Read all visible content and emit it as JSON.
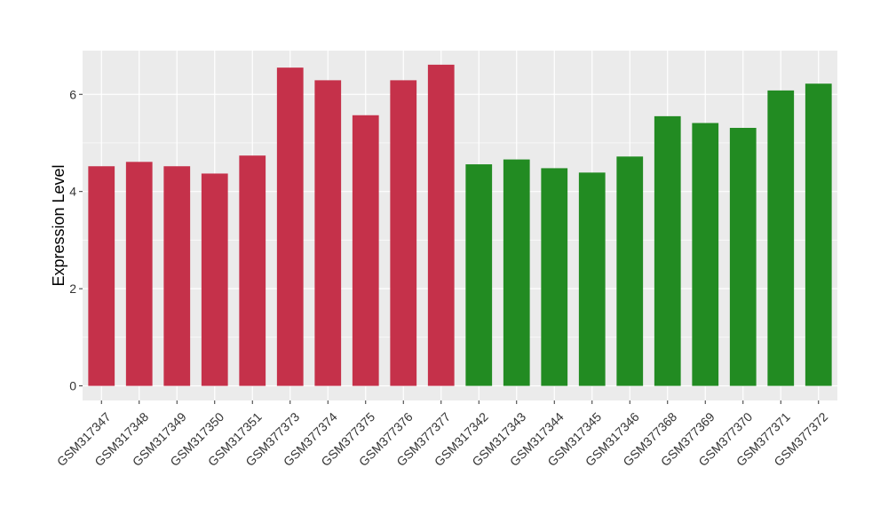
{
  "chart_data": {
    "type": "bar",
    "ylabel": "Expression Level",
    "xlabel": "",
    "ylim": [
      -0.3,
      6.9
    ],
    "yticks": [
      0,
      2,
      4,
      6
    ],
    "grid": true,
    "legend": "none",
    "categories": [
      "GSM317347",
      "GSM317348",
      "GSM317349",
      "GSM317350",
      "GSM317351",
      "GSM377373",
      "GSM377374",
      "GSM377375",
      "GSM377376",
      "GSM377377",
      "GSM317342",
      "GSM317343",
      "GSM317344",
      "GSM317345",
      "GSM317346",
      "GSM377368",
      "GSM377369",
      "GSM377370",
      "GSM377371",
      "GSM377372"
    ],
    "values": [
      4.52,
      4.61,
      4.52,
      4.37,
      4.74,
      6.55,
      6.29,
      5.57,
      6.29,
      6.61,
      4.56,
      4.66,
      4.48,
      4.39,
      4.72,
      5.55,
      5.41,
      5.31,
      6.08,
      6.22
    ],
    "group_colors": [
      "#c5314a",
      "#c5314a",
      "#c5314a",
      "#c5314a",
      "#c5314a",
      "#c5314a",
      "#c5314a",
      "#c5314a",
      "#c5314a",
      "#c5314a",
      "#228b22",
      "#228b22",
      "#228b22",
      "#228b22",
      "#228b22",
      "#228b22",
      "#228b22",
      "#228b22",
      "#228b22",
      "#228b22"
    ],
    "panel_background": "#ebebeb",
    "grid_color": "#ffffff"
  }
}
